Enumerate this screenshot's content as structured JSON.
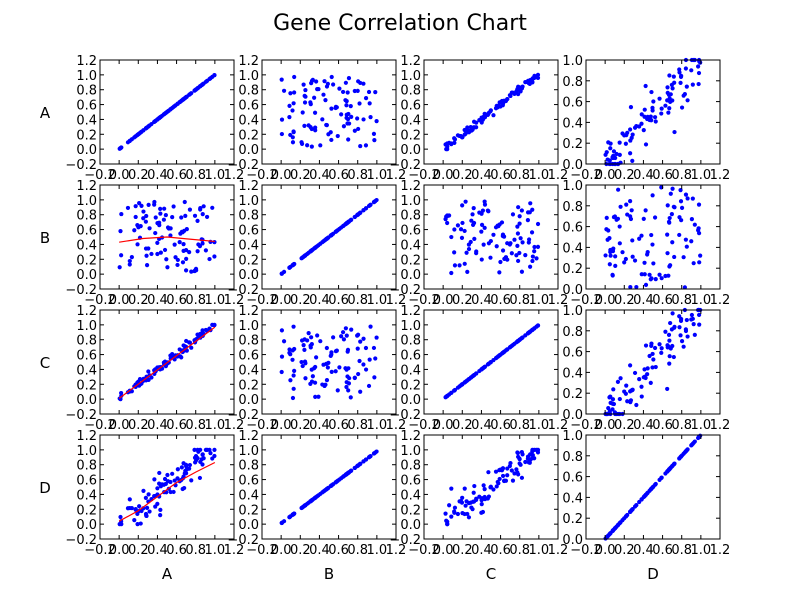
{
  "chart_data": {
    "type": "scatter",
    "title": "Gene Correlation Chart",
    "variables": [
      "A",
      "B",
      "C",
      "D"
    ],
    "row_labels": [
      "A",
      "B",
      "C",
      "D"
    ],
    "col_labels": [
      "A",
      "B",
      "C",
      "D"
    ],
    "xticks": [
      "−0.2",
      "0.0",
      "0.2",
      "0.4",
      "0.6",
      "0.8",
      "1.0",
      "1.2"
    ],
    "yticks_col0_to_col2": [
      "−0.2",
      "0.0",
      "0.2",
      "0.4",
      "0.6",
      "0.8",
      "1.0",
      "1.2"
    ],
    "yticks_col3": [
      "0.0",
      "0.2",
      "0.4",
      "0.6",
      "0.8",
      "1.0"
    ],
    "xlim": [
      -0.2,
      1.2
    ],
    "ylim_col0_to_col2": [
      -0.2,
      1.2
    ],
    "ylim_col3": [
      0.0,
      1.0
    ],
    "grid": false,
    "marker_color": "#0000ff",
    "fit_line_color": "#ff0000",
    "relationships": [
      {
        "x": "A",
        "y": "A",
        "kind": "identity"
      },
      {
        "x": "B",
        "y": "A",
        "kind": "uncorrelated"
      },
      {
        "x": "C",
        "y": "A",
        "kind": "strong_positive",
        "noise": 0.03
      },
      {
        "x": "D",
        "y": "A",
        "kind": "moderate_positive",
        "noise": 0.12
      },
      {
        "x": "A",
        "y": "B",
        "kind": "uncorrelated",
        "fit_line": {
          "x": [
            0.0,
            0.25,
            0.5,
            0.75,
            1.0
          ],
          "y": [
            0.43,
            0.48,
            0.5,
            0.47,
            0.44
          ]
        }
      },
      {
        "x": "B",
        "y": "B",
        "kind": "identity"
      },
      {
        "x": "C",
        "y": "B",
        "kind": "uncorrelated"
      },
      {
        "x": "D",
        "y": "B",
        "kind": "uncorrelated"
      },
      {
        "x": "A",
        "y": "C",
        "kind": "strong_positive",
        "noise": 0.03,
        "fit_line": {
          "x": [
            0.0,
            1.0
          ],
          "y": [
            0.01,
            0.97
          ]
        }
      },
      {
        "x": "B",
        "y": "C",
        "kind": "uncorrelated"
      },
      {
        "x": "C",
        "y": "C",
        "kind": "identity"
      },
      {
        "x": "D",
        "y": "C",
        "kind": "moderate_positive",
        "noise": 0.12
      },
      {
        "x": "A",
        "y": "D",
        "kind": "moderate_positive",
        "noise": 0.12,
        "fit_line": {
          "x": [
            0.0,
            0.2,
            0.4,
            0.6,
            0.8,
            1.0
          ],
          "y": [
            0.04,
            0.18,
            0.37,
            0.56,
            0.7,
            0.83
          ]
        }
      },
      {
        "x": "B",
        "y": "D",
        "kind": "uncorrelated"
      },
      {
        "x": "C",
        "y": "D",
        "kind": "moderate_positive",
        "noise": 0.12
      },
      {
        "x": "D",
        "y": "D",
        "kind": "identity"
      }
    ],
    "points_per_panel": 100
  }
}
